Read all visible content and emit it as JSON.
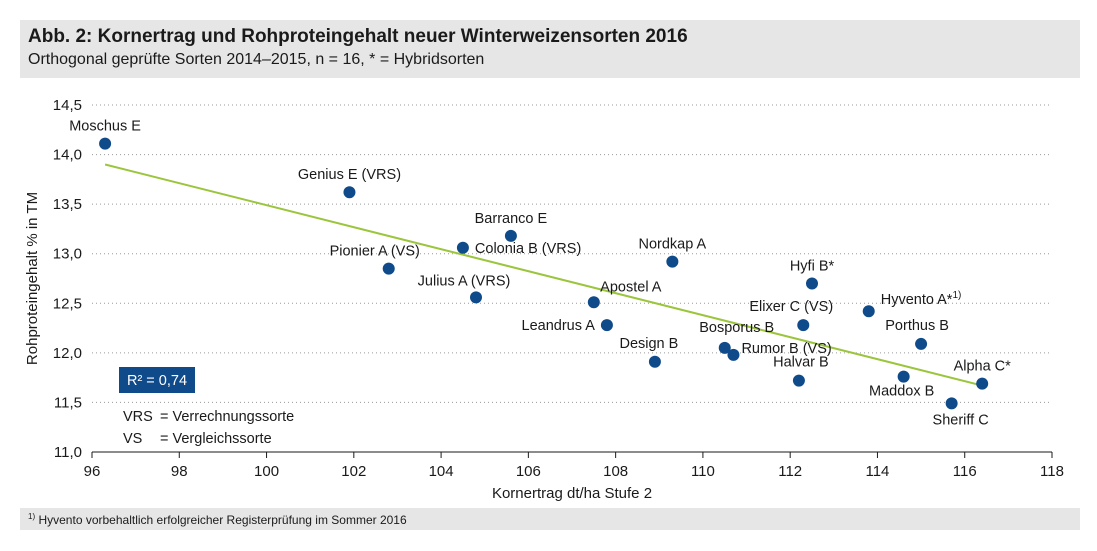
{
  "header": {
    "title": "Abb. 2: Kornertrag und Rohproteingehalt neuer Winterweizensorten 2016",
    "subtitle": "Orthogonal geprüfte Sorten 2014–2015, n = 16, * = Hybridsorten"
  },
  "footer": {
    "marker": "1)",
    "text": "Hyvento vorbehaltlich erfolgreicher Registerprüfung im Sommer 2016"
  },
  "chart_data": {
    "type": "scatter",
    "xlabel": "Kornertrag dt/ha Stufe 2",
    "ylabel": "Rohproteingehalt % in TM",
    "xlim": [
      96,
      118
    ],
    "ylim": [
      11.0,
      14.5
    ],
    "xticks": [
      96,
      98,
      100,
      102,
      104,
      106,
      108,
      110,
      112,
      114,
      116,
      118
    ],
    "yticks": [
      "11,0",
      "11,5",
      "12,0",
      "12,5",
      "13,0",
      "13,5",
      "14,0",
      "14,5"
    ],
    "grid": "horizontal-dotted",
    "points": [
      {
        "name": "Moschus E",
        "x": 96.3,
        "y": 14.11
      },
      {
        "name": "Genius E (VRS)",
        "x": 101.9,
        "y": 13.62
      },
      {
        "name": "Barranco E",
        "x": 105.6,
        "y": 13.18
      },
      {
        "name": "Colonia B (VRS)",
        "x": 104.5,
        "y": 13.06
      },
      {
        "name": "Pionier A (VS)",
        "x": 102.8,
        "y": 12.85
      },
      {
        "name": "Nordkap A",
        "x": 109.3,
        "y": 12.92
      },
      {
        "name": "Julius A (VRS)",
        "x": 104.8,
        "y": 12.56
      },
      {
        "name": "Apostel A",
        "x": 107.5,
        "y": 12.51
      },
      {
        "name": "Leandrus A",
        "x": 107.8,
        "y": 12.28
      },
      {
        "name": "Design B",
        "x": 108.9,
        "y": 11.91
      },
      {
        "name": "Bosporus B",
        "x": 110.5,
        "y": 12.05
      },
      {
        "name": "Rumor B (VS)",
        "x": 110.7,
        "y": 11.98
      },
      {
        "name": "Hyfi B*",
        "x": 112.5,
        "y": 12.7
      },
      {
        "name": "Elixer C (VS)",
        "x": 112.3,
        "y": 12.28
      },
      {
        "name": "Halvar B",
        "x": 112.2,
        "y": 11.72
      },
      {
        "name": "Hyvento A*",
        "x": 113.8,
        "y": 12.42
      },
      {
        "name": "Porthus B",
        "x": 115.0,
        "y": 12.09
      },
      {
        "name": "Maddox B",
        "x": 114.6,
        "y": 11.76
      },
      {
        "name": "Alpha C*",
        "x": 116.4,
        "y": 11.69
      },
      {
        "name": "Sheriff C",
        "x": 115.7,
        "y": 11.49
      }
    ],
    "trendline": {
      "x": [
        96.3,
        116.4
      ],
      "y": [
        13.9,
        11.67
      ]
    },
    "r_squared": "R² = 0,74",
    "legend": [
      {
        "abbr": "VRS",
        "text": "= Verrechnungssorte"
      },
      {
        "abbr": "VS",
        "text": "= Vergleichssorte"
      }
    ],
    "colors": {
      "point": "#0f4a8a",
      "trend": "#9bc53d",
      "r2_box": "#0f4a8a",
      "grid": "#9a9a9a"
    }
  }
}
